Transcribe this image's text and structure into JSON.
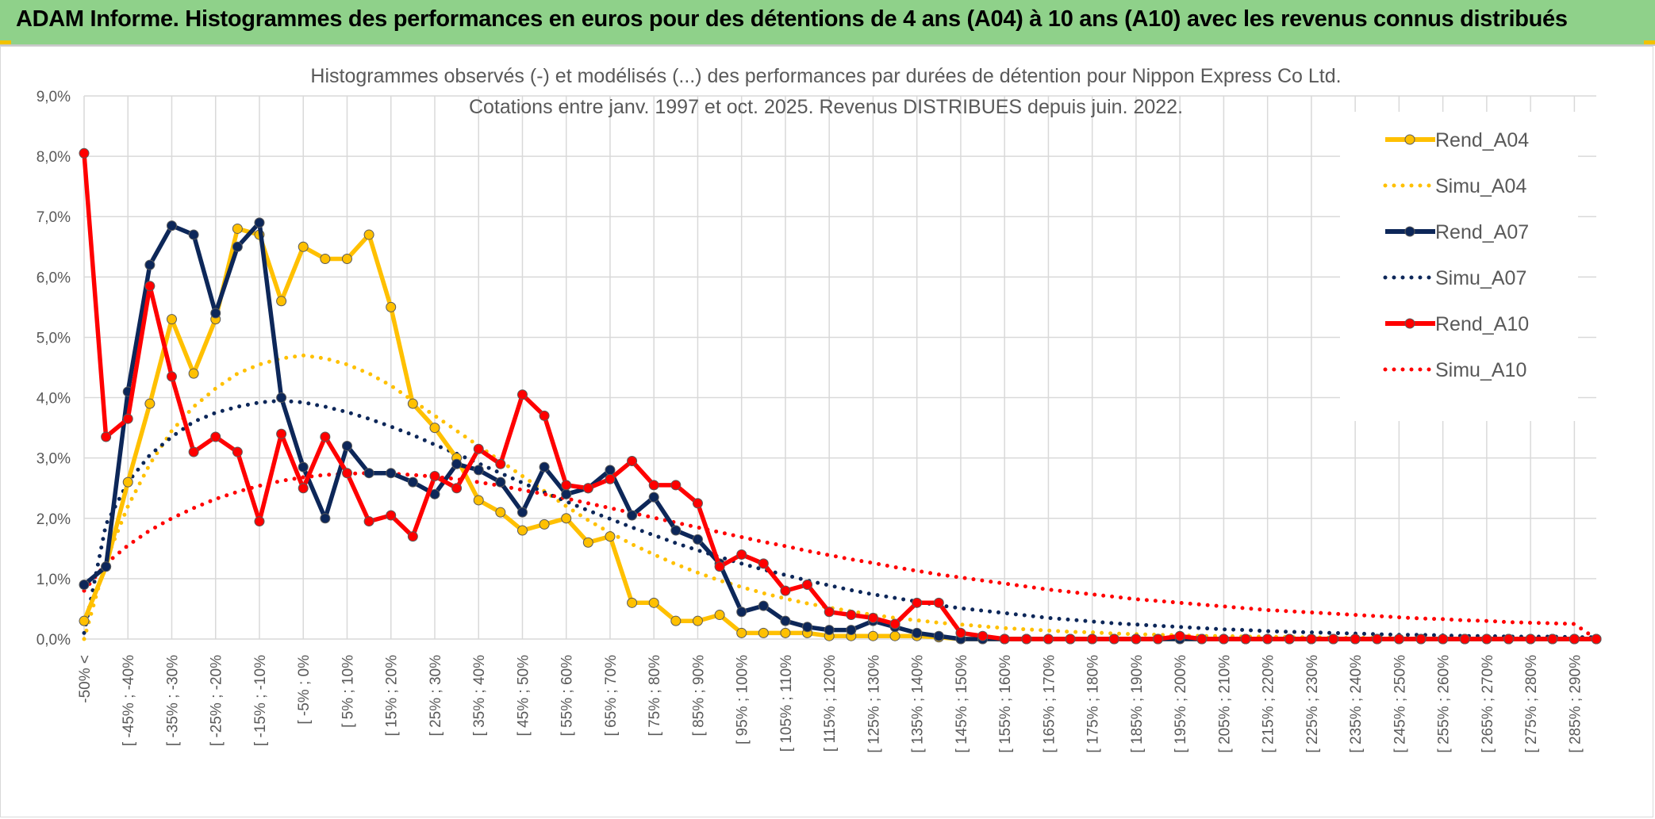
{
  "header": {
    "title": "ADAM Informe. Histogrammes des performances en euros pour des détentions de 4 ans (A04) à 10 ans (A10) avec les revenus connus distribués",
    "background": "#8fd18a"
  },
  "chart_data": {
    "type": "line",
    "title_line1": "Histogrammes observés (-) et modélisés (...) des performances par durées de détention pour Nippon Express Co Ltd.",
    "title_line2": "Cotations entre janv. 1997 et oct. 2025. Revenus DISTRIBUES depuis juin. 2022.",
    "grid": true,
    "legend_position": "right",
    "ylim": [
      0,
      9
    ],
    "y_ticks": [
      "0,0%",
      "1,0%",
      "2,0%",
      "3,0%",
      "4,0%",
      "5,0%",
      "6,0%",
      "7,0%",
      "8,0%",
      "9,0%"
    ],
    "x_labels": [
      "-50% <",
      "[ -45% ; -40%",
      "[ -35% ; -30%",
      "[ -25% ; -20%",
      "[ -15% ; -10%",
      "[ -5% ; 0%",
      "[ 5% ; 10%",
      "[ 15% ; 20%",
      "[ 25% ; 30%",
      "[ 35% ; 40%",
      "[ 45% ; 50%",
      "[ 55% ; 60%",
      "[ 65% ; 70%",
      "[ 75% ; 80%",
      "[ 85% ; 90%",
      "[ 95% ; 100%",
      "[ 105% ; 110%",
      "[ 115% ; 120%",
      "[ 125% ; 130%",
      "[ 135% ; 140%",
      "[ 145% ; 150%",
      "[ 155% ; 160%",
      "[ 165% ; 170%",
      "[ 175% ; 180%",
      "[ 185% ; 190%",
      "[ 195% ; 200%",
      "[ 205% ; 210%",
      "[ 215% ; 220%",
      "[ 225% ; 230%",
      "[ 235% ; 240%",
      "[ 245% ; 250%",
      "[ 255% ; 260%",
      "[ 265% ; 270%",
      "[ 275% ; 280%",
      "[ 285% ; 290%"
    ],
    "category_count": 70,
    "series": [
      {
        "name": "Rend_A04",
        "style": "solid",
        "color": "#ffc000",
        "values": [
          0.3,
          1.2,
          2.6,
          3.9,
          5.3,
          4.4,
          5.3,
          6.8,
          6.7,
          5.6,
          6.5,
          6.3,
          6.3,
          6.7,
          5.5,
          3.9,
          3.5,
          3.0,
          2.3,
          2.1,
          1.8,
          1.9,
          2.0,
          1.6,
          1.7,
          0.6,
          0.6,
          0.3,
          0.3,
          0.4,
          0.1,
          0.1,
          0.1,
          0.1,
          0.05,
          0.05,
          0.05,
          0.05,
          0.05,
          0.03,
          0,
          0,
          0,
          0,
          0,
          0,
          0,
          0,
          0,
          0,
          0,
          0,
          0,
          0,
          0,
          0,
          0,
          0,
          0,
          0,
          0,
          0,
          0,
          0,
          0,
          0,
          0,
          0,
          0,
          0
        ]
      },
      {
        "name": "Simu_A04",
        "style": "dotted",
        "color": "#ffc000",
        "values": [
          0.0,
          1.3,
          2.2,
          2.9,
          3.45,
          3.85,
          4.15,
          4.4,
          4.55,
          4.65,
          4.7,
          4.65,
          4.55,
          4.4,
          4.2,
          3.95,
          3.7,
          3.45,
          3.2,
          2.95,
          2.7,
          2.45,
          2.2,
          1.97,
          1.76,
          1.57,
          1.4,
          1.24,
          1.1,
          0.97,
          0.86,
          0.76,
          0.67,
          0.59,
          0.52,
          0.46,
          0.4,
          0.35,
          0.31,
          0.27,
          0.24,
          0.21,
          0.18,
          0.16,
          0.14,
          0.12,
          0.11,
          0.09,
          0.08,
          0.07,
          0.06,
          0.05,
          0.05,
          0.04,
          0.04,
          0.03,
          0.03,
          0.02,
          0.02,
          0.02,
          0.02,
          0.01,
          0.01,
          0.01,
          0.01,
          0.01,
          0.01,
          0.01,
          0.01,
          0.01
        ]
      },
      {
        "name": "Rend_A07",
        "style": "solid",
        "color": "#0d2759",
        "values": [
          0.9,
          1.2,
          4.1,
          6.2,
          6.85,
          6.7,
          5.4,
          6.5,
          6.9,
          4.0,
          2.85,
          2.0,
          3.2,
          2.75,
          2.75,
          2.6,
          2.4,
          2.9,
          2.8,
          2.6,
          2.1,
          2.85,
          2.4,
          2.5,
          2.8,
          2.05,
          2.35,
          1.8,
          1.65,
          1.25,
          0.45,
          0.55,
          0.3,
          0.2,
          0.15,
          0.15,
          0.3,
          0.2,
          0.1,
          0.05,
          0.0,
          0,
          0,
          0,
          0,
          0,
          0,
          0,
          0,
          0,
          0,
          0,
          0,
          0,
          0,
          0,
          0,
          0,
          0,
          0,
          0,
          0,
          0,
          0,
          0,
          0,
          0,
          0,
          0,
          0
        ]
      },
      {
        "name": "Simu_A07",
        "style": "dotted",
        "color": "#0d2759",
        "values": [
          0.1,
          1.9,
          2.6,
          3.05,
          3.35,
          3.6,
          3.75,
          3.85,
          3.92,
          3.95,
          3.92,
          3.85,
          3.76,
          3.65,
          3.52,
          3.38,
          3.22,
          3.07,
          2.91,
          2.75,
          2.59,
          2.43,
          2.28,
          2.13,
          1.99,
          1.85,
          1.72,
          1.59,
          1.47,
          1.36,
          1.25,
          1.15,
          1.06,
          0.97,
          0.89,
          0.81,
          0.74,
          0.68,
          0.62,
          0.56,
          0.51,
          0.47,
          0.43,
          0.39,
          0.35,
          0.32,
          0.29,
          0.26,
          0.24,
          0.22,
          0.2,
          0.18,
          0.16,
          0.15,
          0.13,
          0.12,
          0.11,
          0.1,
          0.09,
          0.08,
          0.07,
          0.07,
          0.06,
          0.05,
          0.05,
          0.04,
          0.04,
          0.04,
          0.03,
          0.03
        ]
      },
      {
        "name": "Rend_A10",
        "style": "solid",
        "color": "#ff0000",
        "values": [
          8.05,
          3.35,
          3.65,
          5.85,
          4.35,
          3.1,
          3.35,
          3.1,
          1.95,
          3.4,
          2.5,
          3.35,
          2.75,
          1.95,
          2.05,
          1.7,
          2.7,
          2.5,
          3.15,
          2.9,
          4.05,
          3.7,
          2.55,
          2.5,
          2.65,
          2.95,
          2.55,
          2.55,
          2.25,
          1.2,
          1.4,
          1.25,
          0.8,
          0.9,
          0.45,
          0.4,
          0.35,
          0.25,
          0.6,
          0.6,
          0.1,
          0.05,
          0.0,
          0,
          0,
          0,
          0,
          0,
          0,
          0,
          0.05,
          0,
          0,
          0,
          0,
          0,
          0,
          0,
          0,
          0,
          0,
          0,
          0,
          0,
          0,
          0,
          0,
          0,
          0,
          0
        ]
      },
      {
        "name": "Simu_A10",
        "style": "dotted",
        "color": "#ff0000",
        "values": [
          0.8,
          1.25,
          1.55,
          1.8,
          2.0,
          2.17,
          2.32,
          2.44,
          2.54,
          2.62,
          2.68,
          2.72,
          2.74,
          2.75,
          2.74,
          2.72,
          2.69,
          2.65,
          2.6,
          2.54,
          2.47,
          2.4,
          2.33,
          2.25,
          2.17,
          2.09,
          2.01,
          1.93,
          1.85,
          1.77,
          1.69,
          1.61,
          1.54,
          1.46,
          1.39,
          1.32,
          1.26,
          1.19,
          1.13,
          1.07,
          1.02,
          0.97,
          0.92,
          0.87,
          0.82,
          0.78,
          0.74,
          0.7,
          0.66,
          0.63,
          0.6,
          0.57,
          0.54,
          0.51,
          0.48,
          0.46,
          0.44,
          0.42,
          0.4,
          0.38,
          0.36,
          0.34,
          0.33,
          0.31,
          0.3,
          0.28,
          0.27,
          0.26,
          0.25,
          0.0
        ]
      }
    ]
  }
}
